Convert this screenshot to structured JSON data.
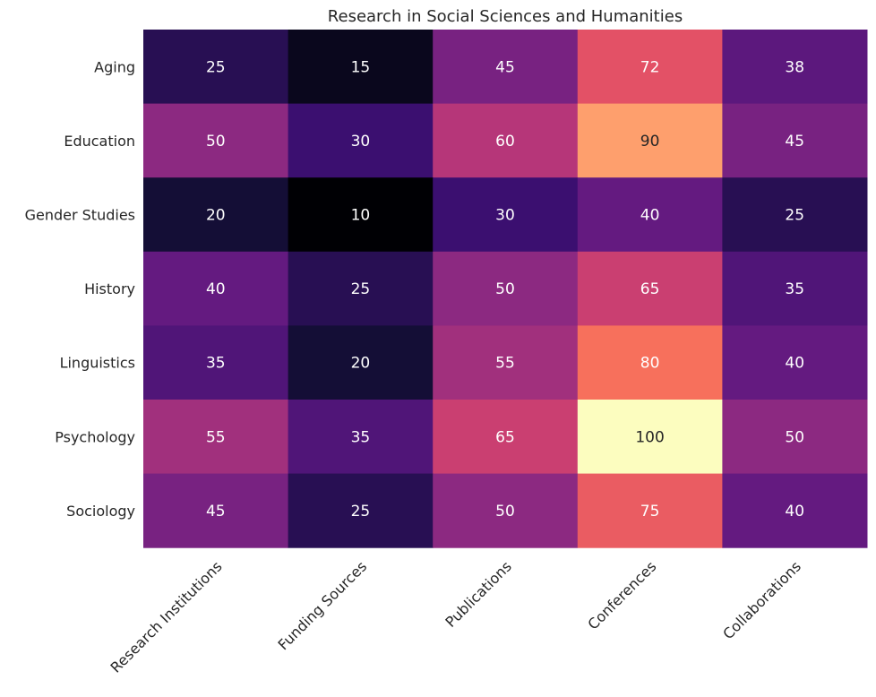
{
  "chart_data": {
    "type": "heatmap",
    "title": "Research in Social Sciences and Humanities",
    "xlabel": "",
    "ylabel": "",
    "x_categories": [
      "Research Institutions",
      "Funding Sources",
      "Publications",
      "Conferences",
      "Collaborations"
    ],
    "y_categories": [
      "Aging",
      "Education",
      "Gender Studies",
      "History",
      "Linguistics",
      "Psychology",
      "Sociology"
    ],
    "values": [
      [
        25,
        15,
        45,
        72,
        38
      ],
      [
        50,
        30,
        60,
        90,
        45
      ],
      [
        20,
        10,
        30,
        40,
        25
      ],
      [
        40,
        25,
        50,
        65,
        35
      ],
      [
        35,
        20,
        55,
        80,
        40
      ],
      [
        55,
        35,
        65,
        100,
        50
      ],
      [
        45,
        25,
        50,
        75,
        40
      ]
    ],
    "value_range": [
      10,
      100
    ],
    "colormap": "magma",
    "annotations": true,
    "colorbar": false,
    "grid": false
  }
}
